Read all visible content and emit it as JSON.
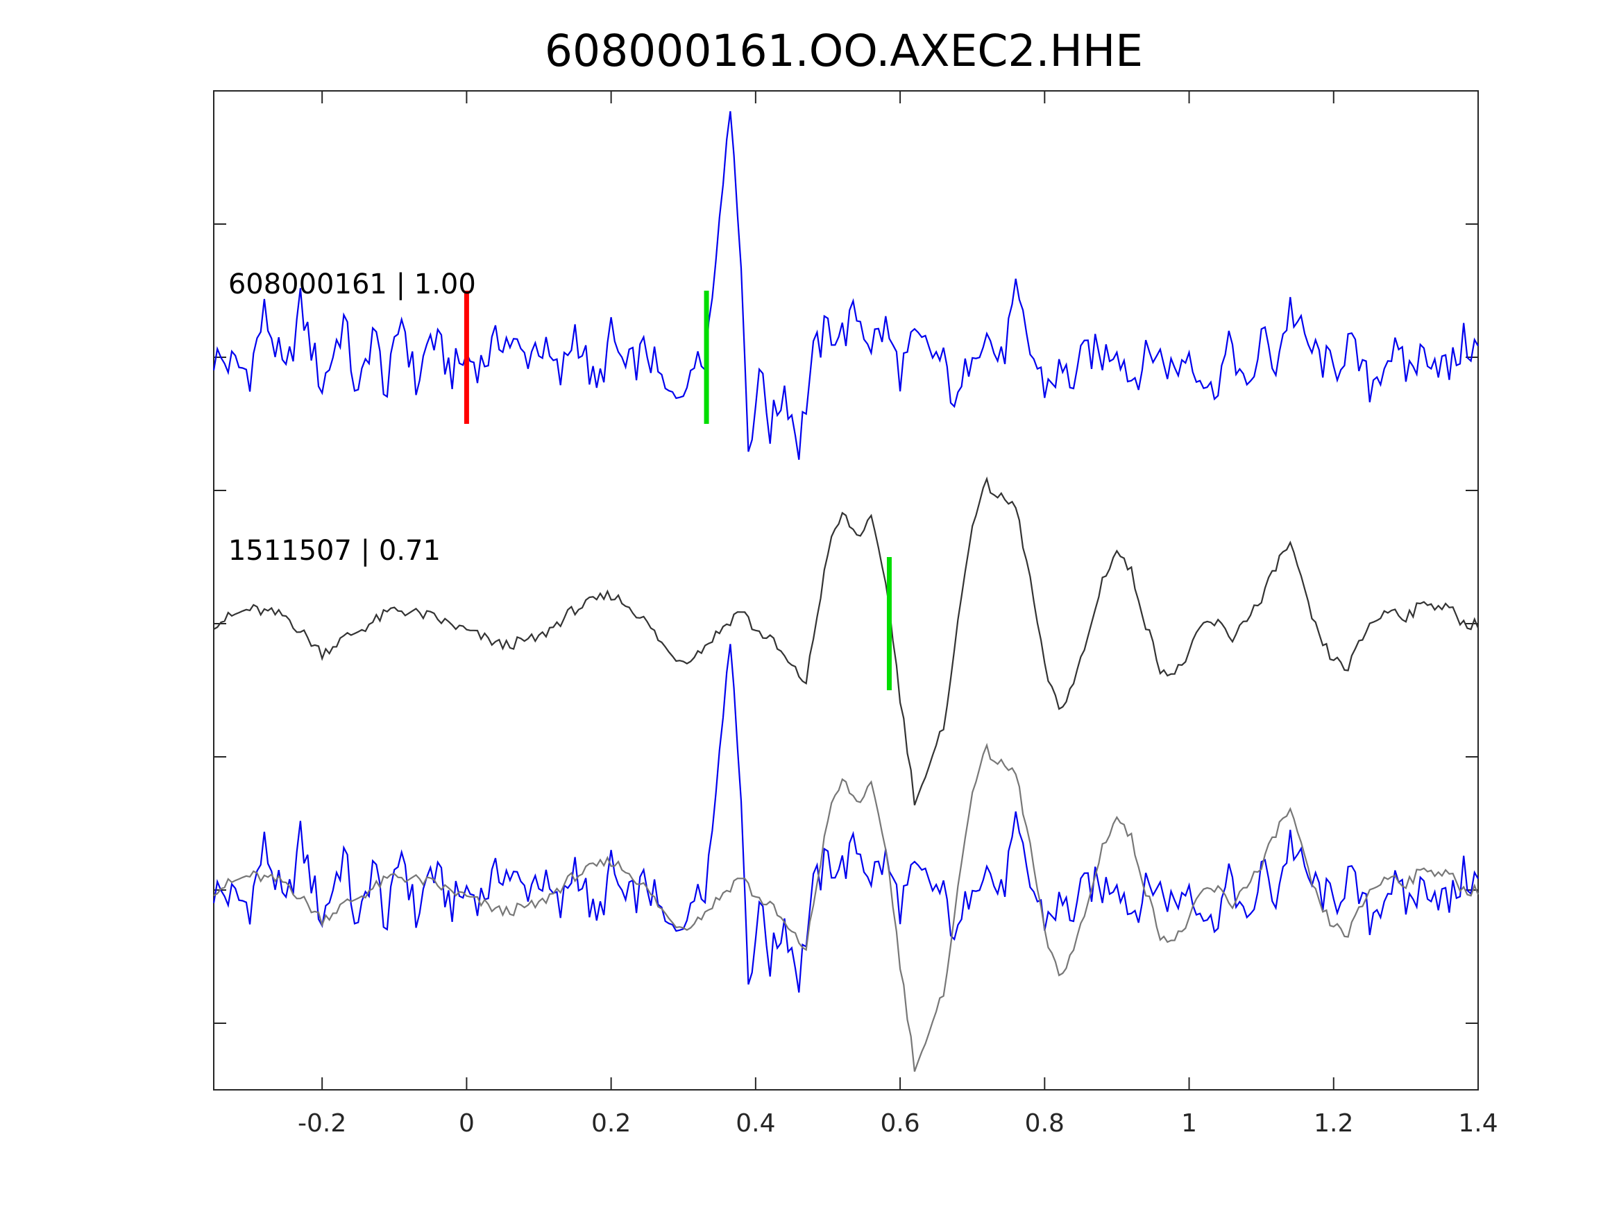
{
  "chart_data": {
    "type": "line",
    "title": "608000161.OO.AXEC2.HHE",
    "xlabel": "",
    "ylabel": "",
    "xlim": [
      -0.35,
      1.4
    ],
    "ylim": [
      -0.75,
      3.0
    ],
    "x_ticks": [
      -0.2,
      0,
      0.2,
      0.4,
      0.6,
      0.8,
      1,
      1.2,
      1.4
    ],
    "x_tick_labels": [
      "-0.2",
      "0",
      "0.2",
      "0.4",
      "0.6",
      "0.8",
      "1",
      "1.2",
      "1.4"
    ],
    "y_ticks": [
      -0.5,
      0,
      0.5,
      1,
      1.5,
      2,
      2.5
    ],
    "y_tick_labels_visible": false,
    "grid": false,
    "legend": "none",
    "colors": {
      "template": "#0000ee",
      "reference": "#333333",
      "overlay_reference": "#777777",
      "pick_p": "#ff0000",
      "pick_s": "#00dd00"
    },
    "labels": [
      {
        "text": "608000161 | 1.00",
        "x": -0.33,
        "y": 2.24
      },
      {
        "text": "1511507 | 0.71",
        "x": -0.33,
        "y": 1.24
      }
    ],
    "picks": [
      {
        "x": 0.0,
        "y_range": [
          1.75,
          2.25
        ],
        "color": "#ff0000"
      },
      {
        "x": 0.332,
        "y_range": [
          1.75,
          2.25
        ],
        "color": "#00dd00"
      },
      {
        "x": 0.585,
        "y_range": [
          0.75,
          1.25
        ],
        "color": "#00dd00"
      }
    ],
    "series": [
      {
        "color": "#0000ee",
        "offset": 2.0,
        "gain": 0.55,
        "x": [
          -0.35,
          -0.3,
          -0.28,
          -0.25,
          -0.23,
          -0.2,
          -0.17,
          -0.15,
          -0.13,
          -0.11,
          -0.09,
          -0.07,
          -0.05,
          -0.02,
          0,
          0.02,
          0.05,
          0.08,
          0.1,
          0.13,
          0.15,
          0.18,
          0.2,
          0.22,
          0.25,
          0.28,
          0.3,
          0.31,
          0.32,
          0.33,
          0.34,
          0.35,
          0.36,
          0.37,
          0.38,
          0.39,
          0.4,
          0.41,
          0.42,
          0.44,
          0.46,
          0.48,
          0.5,
          0.52,
          0.54,
          0.56,
          0.58,
          0.6,
          0.62,
          0.64,
          0.66,
          0.68,
          0.7,
          0.72,
          0.74,
          0.76,
          0.78,
          0.8,
          0.82,
          0.84,
          0.86,
          0.88,
          0.9,
          0.92,
          0.95,
          0.98,
          1,
          1.03,
          1.06,
          1.08,
          1.1,
          1.12,
          1.14,
          1.16,
          1.18,
          1.2,
          1.22,
          1.25,
          1.28,
          1.3,
          1.33,
          1.36,
          1.38,
          1.4
        ],
        "y": [
          0,
          -0.1,
          0.3,
          -0.15,
          0.35,
          -0.2,
          0.25,
          -0.3,
          0.2,
          -0.25,
          0.3,
          -0.2,
          0.15,
          -0.1,
          0,
          -0.05,
          0.15,
          0,
          0.1,
          -0.15,
          0.2,
          -0.25,
          0.15,
          -0.1,
          0.05,
          -0.3,
          -0.15,
          -0.2,
          0.1,
          0.05,
          0.4,
          1.0,
          1.6,
          1.5,
          0.6,
          -0.6,
          -0.3,
          -0.1,
          -0.5,
          -0.2,
          -0.6,
          0.0,
          0.2,
          0.15,
          0.3,
          0.1,
          0.2,
          -0.1,
          0.1,
          0.05,
          -0.05,
          -0.35,
          0.1,
          0.15,
          -0.05,
          0.4,
          0.05,
          -0.2,
          -0.1,
          -0.15,
          0.05,
          0.0,
          0.1,
          -0.15,
          0.05,
          -0.1,
          0.05,
          -0.25,
          0.1,
          -0.3,
          0.15,
          -0.05,
          0.35,
          0.1,
          0.0,
          -0.1,
          0.1,
          -0.2,
          0.05,
          -0.1,
          0.05,
          -0.1,
          0.1,
          0.05
        ]
      },
      {
        "color": "#333333",
        "offset": 1.0,
        "gain": 0.55,
        "x": [
          -0.35,
          -0.3,
          -0.25,
          -0.22,
          -0.2,
          -0.17,
          -0.15,
          -0.1,
          -0.05,
          0,
          0.05,
          0.1,
          0.15,
          0.2,
          0.23,
          0.25,
          0.28,
          0.3,
          0.32,
          0.35,
          0.38,
          0.4,
          0.42,
          0.45,
          0.47,
          0.48,
          0.5,
          0.52,
          0.54,
          0.56,
          0.58,
          0.6,
          0.62,
          0.64,
          0.66,
          0.68,
          0.7,
          0.72,
          0.74,
          0.76,
          0.78,
          0.8,
          0.82,
          0.84,
          0.86,
          0.88,
          0.9,
          0.92,
          0.94,
          0.96,
          0.98,
          1,
          1.02,
          1.04,
          1.06,
          1.08,
          1.1,
          1.12,
          1.14,
          1.16,
          1.18,
          1.2,
          1.22,
          1.25,
          1.28,
          1.3,
          1.33,
          1.36,
          1.38,
          1.4
        ],
        "y": [
          0,
          0.1,
          0.05,
          -0.1,
          -0.2,
          -0.1,
          -0.05,
          0.1,
          0.05,
          -0.05,
          -0.15,
          -0.1,
          0.1,
          0.2,
          0.1,
          0.0,
          -0.2,
          -0.25,
          -0.2,
          -0.05,
          0.1,
          -0.05,
          -0.1,
          -0.3,
          -0.4,
          -0.1,
          0.5,
          0.75,
          0.6,
          0.7,
          0.3,
          -0.5,
          -1.2,
          -1.0,
          -0.7,
          0.0,
          0.7,
          0.95,
          0.85,
          0.8,
          0.3,
          -0.3,
          -0.6,
          -0.4,
          -0.1,
          0.3,
          0.5,
          0.35,
          0.0,
          -0.3,
          -0.35,
          -0.2,
          0.0,
          0.0,
          -0.1,
          0.05,
          0.15,
          0.4,
          0.55,
          0.2,
          -0.1,
          -0.25,
          -0.3,
          0.0,
          0.1,
          0.05,
          0.15,
          0.1,
          0.0,
          0.0
        ]
      },
      {
        "color": "#0000ee",
        "offset": 0.0,
        "gain": 0.55,
        "x": [
          -0.35,
          -0.3,
          -0.28,
          -0.25,
          -0.23,
          -0.2,
          -0.17,
          -0.15,
          -0.13,
          -0.11,
          -0.09,
          -0.07,
          -0.05,
          -0.02,
          0,
          0.02,
          0.05,
          0.08,
          0.1,
          0.13,
          0.15,
          0.18,
          0.2,
          0.22,
          0.25,
          0.28,
          0.3,
          0.31,
          0.32,
          0.33,
          0.34,
          0.35,
          0.36,
          0.37,
          0.38,
          0.39,
          0.4,
          0.41,
          0.42,
          0.44,
          0.46,
          0.48,
          0.5,
          0.52,
          0.54,
          0.56,
          0.58,
          0.6,
          0.62,
          0.64,
          0.66,
          0.68,
          0.7,
          0.72,
          0.74,
          0.76,
          0.78,
          0.8,
          0.82,
          0.84,
          0.86,
          0.88,
          0.9,
          0.92,
          0.95,
          0.98,
          1,
          1.03,
          1.06,
          1.08,
          1.1,
          1.12,
          1.14,
          1.16,
          1.18,
          1.2,
          1.22,
          1.25,
          1.28,
          1.3,
          1.33,
          1.36,
          1.38,
          1.4
        ],
        "y": [
          0,
          -0.1,
          0.3,
          -0.15,
          0.35,
          -0.2,
          0.25,
          -0.3,
          0.2,
          -0.25,
          0.3,
          -0.2,
          0.15,
          -0.1,
          0,
          -0.05,
          0.15,
          0,
          0.1,
          -0.15,
          0.2,
          -0.25,
          0.15,
          -0.1,
          0.05,
          -0.3,
          -0.15,
          -0.2,
          0.1,
          0.05,
          0.4,
          1.0,
          1.6,
          1.5,
          0.6,
          -0.6,
          -0.3,
          -0.1,
          -0.5,
          -0.2,
          -0.6,
          0.0,
          0.2,
          0.15,
          0.3,
          0.1,
          0.2,
          -0.1,
          0.1,
          0.05,
          -0.05,
          -0.35,
          0.1,
          0.15,
          -0.05,
          0.4,
          0.05,
          -0.2,
          -0.1,
          -0.15,
          0.05,
          0.0,
          0.1,
          -0.15,
          0.05,
          -0.1,
          0.05,
          -0.25,
          0.1,
          -0.3,
          0.15,
          -0.05,
          0.35,
          0.1,
          0.0,
          -0.1,
          0.1,
          -0.2,
          0.05,
          -0.1,
          0.05,
          -0.1,
          0.1,
          0.05
        ]
      },
      {
        "color": "#777777",
        "offset": 0.0,
        "gain": 0.55,
        "x": [
          -0.35,
          -0.3,
          -0.25,
          -0.22,
          -0.2,
          -0.17,
          -0.15,
          -0.1,
          -0.05,
          0,
          0.05,
          0.1,
          0.15,
          0.2,
          0.23,
          0.25,
          0.28,
          0.3,
          0.32,
          0.35,
          0.38,
          0.4,
          0.42,
          0.45,
          0.47,
          0.48,
          0.5,
          0.52,
          0.54,
          0.56,
          0.58,
          0.6,
          0.62,
          0.64,
          0.66,
          0.68,
          0.7,
          0.72,
          0.74,
          0.76,
          0.78,
          0.8,
          0.82,
          0.84,
          0.86,
          0.88,
          0.9,
          0.92,
          0.94,
          0.96,
          0.98,
          1,
          1.02,
          1.04,
          1.06,
          1.08,
          1.1,
          1.12,
          1.14,
          1.16,
          1.18,
          1.2,
          1.22,
          1.25,
          1.28,
          1.3,
          1.33,
          1.36,
          1.38,
          1.4
        ],
        "y": [
          0,
          0.1,
          0.05,
          -0.1,
          -0.2,
          -0.1,
          -0.05,
          0.1,
          0.05,
          -0.05,
          -0.15,
          -0.1,
          0.1,
          0.2,
          0.1,
          0.0,
          -0.2,
          -0.25,
          -0.2,
          -0.05,
          0.1,
          -0.05,
          -0.1,
          -0.3,
          -0.4,
          -0.1,
          0.5,
          0.75,
          0.6,
          0.7,
          0.3,
          -0.5,
          -1.2,
          -1.0,
          -0.7,
          0.0,
          0.7,
          0.95,
          0.85,
          0.8,
          0.3,
          -0.3,
          -0.6,
          -0.4,
          -0.1,
          0.3,
          0.5,
          0.35,
          0.0,
          -0.3,
          -0.35,
          -0.2,
          0.0,
          0.0,
          -0.1,
          0.05,
          0.15,
          0.4,
          0.55,
          0.2,
          -0.1,
          -0.25,
          -0.3,
          0.0,
          0.1,
          0.05,
          0.15,
          0.1,
          0.0,
          0.0
        ]
      }
    ]
  }
}
